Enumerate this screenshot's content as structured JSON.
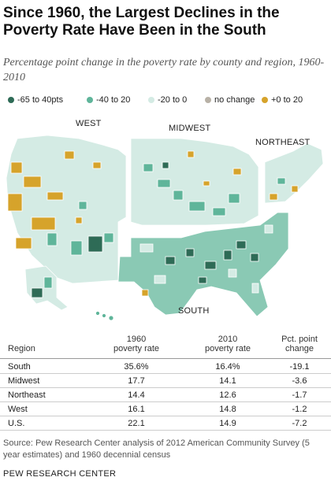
{
  "title": "Since 1960, the Largest Declines in the Poverty Rate Have Been in the South",
  "subtitle": "Percentage point change in the poverty rate by county and region, 1960-2010",
  "legend": {
    "items": [
      {
        "label": "-65 to 40pts",
        "color": "#2e6b56"
      },
      {
        "label": "-40 to 20",
        "color": "#5fb59a"
      },
      {
        "label": "-20 to 0",
        "color": "#d4ebe4"
      },
      {
        "label": "no change",
        "color": "#b8b1a6"
      },
      {
        "label": "+0 to 20",
        "color": "#d6a32b"
      }
    ]
  },
  "map": {
    "regions": [
      {
        "name": "WEST",
        "fill": "#d4ebe4"
      },
      {
        "name": "MIDWEST",
        "fill": "#d4ebe4"
      },
      {
        "name": "NORTHEAST",
        "fill": "#d4ebe4"
      },
      {
        "name": "SOUTH",
        "fill": "#8ac9b4"
      }
    ],
    "colors": {
      "dark": "#2e6b56",
      "mid": "#5fb59a",
      "light": "#d4ebe4",
      "nochange": "#b8b1a6",
      "increase": "#d6a32b",
      "border": "#ffffff"
    }
  },
  "table": {
    "headers": {
      "region": "Region",
      "rate1960_line1": "1960",
      "rate1960_line2": "poverty rate",
      "rate2010_line1": "2010",
      "rate2010_line2": "poverty rate",
      "change_line1": "Pct. point",
      "change_line2": "change"
    },
    "rows": [
      {
        "region": "South",
        "rate1960": "35.6%",
        "rate2010": "16.4%",
        "change": "-19.1"
      },
      {
        "region": "Midwest",
        "rate1960": "17.7",
        "rate2010": "14.1",
        "change": "-3.6"
      },
      {
        "region": "Northeast",
        "rate1960": "14.4",
        "rate2010": "12.6",
        "change": "-1.7"
      },
      {
        "region": "West",
        "rate1960": "16.1",
        "rate2010": "14.8",
        "change": "-1.2"
      },
      {
        "region": "U.S.",
        "rate1960": "22.1",
        "rate2010": "14.9",
        "change": "-7.2"
      }
    ]
  },
  "source": "Source: Pew Research Center analysis of 2012 American Community Survey (5 year estimates) and 1960 decennial census",
  "org": "PEW RESEARCH CENTER"
}
